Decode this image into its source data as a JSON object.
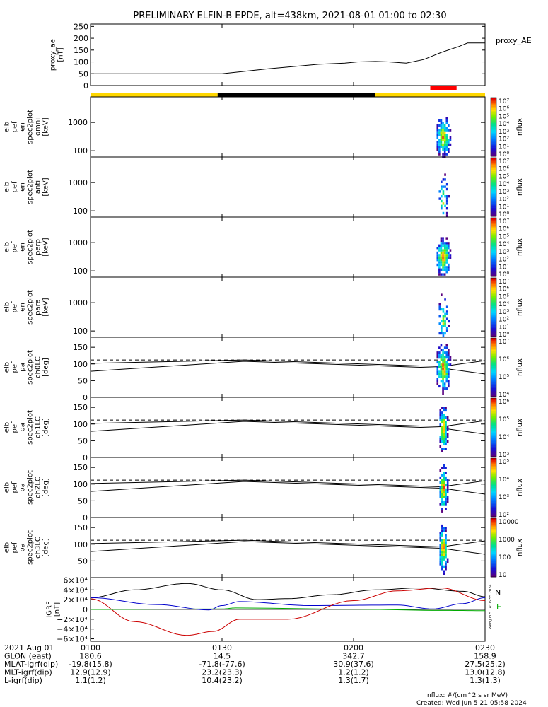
{
  "title": "PRELIMINARY ELFIN-B EPDE, alt=438km, 2021-08-01 01:00 to 02:30",
  "time_ticks": [
    "0100",
    "0130",
    "0200",
    "0230"
  ],
  "colors": {
    "bar_day": "#ffd700",
    "bar_night": "#000000",
    "science_zone": "#ff0000",
    "grf_n": "#000000",
    "grf_e": "#00aa00",
    "grf_blue": "#0000cc",
    "grf_red": "#cc0000"
  },
  "footer": {
    "rows": [
      {
        "label": "2021 Aug 01",
        "values": [
          "0100",
          "0130",
          "0200",
          "0230"
        ]
      },
      {
        "label": "GLON (east)",
        "values": [
          "180.6",
          "14.5",
          "342.7",
          "158.9"
        ]
      },
      {
        "label": "MLAT-igrf(dip)",
        "values": [
          "-19.8(15.8)",
          "-71.8(-77.6)",
          "30.9(37.6)",
          "27.5(25.2)"
        ]
      },
      {
        "label": "MLT-igrf(dip)",
        "values": [
          "12.9(12.9)",
          "23.2(23.3)",
          "1.2(1.2)",
          "13.0(12.8)"
        ]
      },
      {
        "label": "L-igrf(dip)",
        "values": [
          "1.1(1.2)",
          "10.4(23.2)",
          "1.3(1.7)",
          "1.3(1.3)"
        ]
      }
    ],
    "units_note": "nflux: #/(cm^2 s sr MeV)",
    "created": "Created: Wed Jun  5 21:05:58 2024",
    "side_stamp": "Wed Jun  5 14:05:55 2024"
  },
  "chart_data": [
    {
      "type": "line",
      "panel": "proxy_ae",
      "ylabel": [
        "proxy_ae",
        "[nT]"
      ],
      "legend": "proxy_AE",
      "yticks": [
        "0",
        "50",
        "100",
        "150",
        "200",
        "250"
      ],
      "ylim": [
        0,
        260
      ],
      "x_minutes": [
        0,
        30,
        40,
        46,
        52,
        58,
        61,
        65,
        68,
        72,
        76,
        78,
        80,
        84,
        86,
        88,
        90
      ],
      "values": [
        50,
        50,
        70,
        80,
        90,
        95,
        100,
        102,
        100,
        95,
        110,
        125,
        140,
        165,
        180,
        180,
        180
      ]
    },
    {
      "type": "bar",
      "panel": "orbit_bar",
      "segments": [
        {
          "from": 0,
          "to": 29,
          "kind": "day"
        },
        {
          "from": 29,
          "to": 65,
          "kind": "night"
        },
        {
          "from": 65,
          "to": 90,
          "kind": "day"
        }
      ],
      "science_zone": [
        77.5,
        83.5
      ]
    },
    {
      "type": "heatmap",
      "panel": "omni",
      "ylabel": [
        "elb",
        "pef",
        "en",
        "spec2plot",
        "omni",
        "[keV]"
      ],
      "yticks": [
        "100",
        "1000"
      ],
      "ylim_log": [
        60,
        8000
      ],
      "cbar_ticks": [
        "10⁰",
        "10¹",
        "10²",
        "10³",
        "10⁴",
        "10⁵",
        "10⁶",
        "10⁷"
      ],
      "cbar_label": "nflux",
      "time_range_min": [
        77.2,
        83.6
      ],
      "peak_min": 80.3
    },
    {
      "type": "heatmap",
      "panel": "anti",
      "ylabel": [
        "elb",
        "pef",
        "en",
        "spec2plot",
        "anti",
        "[keV]"
      ],
      "yticks": [
        "100",
        "1000"
      ],
      "ylim_log": [
        60,
        8000
      ],
      "cbar_ticks": [
        "10⁰",
        "10¹",
        "10²",
        "10³",
        "10⁴",
        "10⁵",
        "10⁶",
        "10⁷"
      ],
      "cbar_label": "nflux",
      "time_range_min": [
        77.2,
        83.6
      ],
      "peak_min": 80.3
    },
    {
      "type": "heatmap",
      "panel": "perp",
      "ylabel": [
        "elb",
        "pef",
        "en",
        "spec2plot",
        "perp",
        "[keV]"
      ],
      "yticks": [
        "100",
        "1000"
      ],
      "ylim_log": [
        60,
        8000
      ],
      "cbar_ticks": [
        "10⁰",
        "10¹",
        "10²",
        "10³",
        "10⁴",
        "10⁵",
        "10⁶",
        "10⁷"
      ],
      "cbar_label": "nflux",
      "time_range_min": [
        77.2,
        83.6
      ],
      "peak_min": 80.3
    },
    {
      "type": "heatmap",
      "panel": "para",
      "ylabel": [
        "elb",
        "pef",
        "en",
        "spec2plot",
        "para",
        "[keV]"
      ],
      "yticks": [
        "100",
        "1000"
      ],
      "ylim_log": [
        60,
        8000
      ],
      "cbar_ticks": [
        "10⁰",
        "10¹",
        "10²",
        "10³",
        "10⁴",
        "10⁵",
        "10⁶",
        "10⁷"
      ],
      "cbar_label": "nflux",
      "time_range_min": [
        77.2,
        83.6
      ],
      "peak_min": 80.3
    },
    {
      "type": "heatmap",
      "panel": "ch0LC",
      "ylabel": [
        "elb",
        "pef",
        "pa",
        "spec2plot",
        "ch0LC",
        "[deg]"
      ],
      "yticks": [
        "0",
        "50",
        "100",
        "150"
      ],
      "ylim": [
        0,
        180
      ],
      "cbar_ticks": [
        "10⁴",
        "10⁵",
        "10⁶",
        "10⁷"
      ],
      "cbar_label": "nflux",
      "loss_cone": {
        "x": [
          0,
          35,
          80,
          90
        ],
        "y": [
          78,
          108,
          88,
          70
        ]
      },
      "anti_loss_cone": {
        "x": [
          0,
          35,
          80,
          90
        ],
        "y": [
          102,
          112,
          92,
          110
        ]
      },
      "dashed_level": 112
    },
    {
      "type": "heatmap",
      "panel": "ch1LC",
      "ylabel": [
        "elb",
        "pef",
        "pa",
        "spec2plot",
        "ch1LC",
        "[deg]"
      ],
      "yticks": [
        "0",
        "50",
        "100",
        "150"
      ],
      "ylim": [
        0,
        180
      ],
      "cbar_ticks": [
        "10³",
        "10⁴",
        "10⁵",
        "10⁶"
      ],
      "cbar_label": "nflux",
      "loss_cone": {
        "x": [
          0,
          35,
          80,
          90
        ],
        "y": [
          78,
          108,
          88,
          70
        ]
      },
      "anti_loss_cone": {
        "x": [
          0,
          35,
          80,
          90
        ],
        "y": [
          102,
          112,
          92,
          110
        ]
      },
      "dashed_level": 112
    },
    {
      "type": "heatmap",
      "panel": "ch2LC",
      "ylabel": [
        "elb",
        "pef",
        "pa",
        "spec2plot",
        "ch2LC",
        "[deg]"
      ],
      "yticks": [
        "0",
        "50",
        "100",
        "150"
      ],
      "ylim": [
        0,
        180
      ],
      "cbar_ticks": [
        "10²",
        "10³",
        "10⁴",
        "10⁵"
      ],
      "cbar_label": "nflux",
      "loss_cone": {
        "x": [
          0,
          35,
          80,
          90
        ],
        "y": [
          78,
          108,
          88,
          70
        ]
      },
      "anti_loss_cone": {
        "x": [
          0,
          35,
          80,
          90
        ],
        "y": [
          102,
          112,
          92,
          110
        ]
      },
      "dashed_level": 112
    },
    {
      "type": "heatmap",
      "panel": "ch3LC",
      "ylabel": [
        "elb",
        "pef",
        "pa",
        "spec2plot",
        "ch3LC",
        "[deg]"
      ],
      "yticks": [
        "50",
        "100",
        "150"
      ],
      "ylim": [
        0,
        180
      ],
      "cbar_ticks": [
        "10",
        "100",
        "1000",
        "10000"
      ],
      "cbar_label": "nflux",
      "loss_cone": {
        "x": [
          0,
          35,
          80,
          90
        ],
        "y": [
          78,
          108,
          88,
          70
        ]
      },
      "anti_loss_cone": {
        "x": [
          0,
          35,
          80,
          90
        ],
        "y": [
          102,
          112,
          92,
          110
        ]
      },
      "dashed_level": 112
    },
    {
      "type": "line",
      "panel": "igrf",
      "ylabel": [
        "IGRF",
        "[nT]"
      ],
      "yticks": [
        "6×10⁴",
        "4×10⁴",
        "2×10⁴",
        "0",
        "−2×10⁴",
        "−4×10⁴",
        "−6×10⁴"
      ],
      "ylim": [
        -65000,
        65000
      ],
      "legend": [
        "N",
        "E"
      ],
      "series": [
        {
          "name": "N",
          "x": [
            0,
            10,
            22,
            30,
            38,
            45,
            55,
            65,
            75,
            85,
            90
          ],
          "values": [
            24000,
            40000,
            53000,
            40000,
            20000,
            22000,
            30000,
            40000,
            44000,
            37000,
            26000
          ]
        },
        {
          "x": [
            0,
            15,
            27,
            30,
            34,
            50,
            70,
            78,
            85,
            90
          ],
          "values": [
            24000,
            10000,
            -1000,
            8000,
            16000,
            8000,
            9000,
            1000,
            12000,
            24000
          ]
        },
        {
          "x": [
            0,
            10,
            22,
            28,
            34,
            45,
            60,
            70,
            80,
            90
          ],
          "values": [
            22000,
            -25000,
            -53000,
            -45000,
            -20000,
            -20000,
            18000,
            38000,
            44000,
            18000
          ]
        },
        {
          "name": "E",
          "x": [
            0,
            30,
            33,
            60,
            80,
            90
          ],
          "values": [
            0,
            1000,
            3000,
            500,
            -2000,
            -2500
          ]
        }
      ]
    }
  ]
}
